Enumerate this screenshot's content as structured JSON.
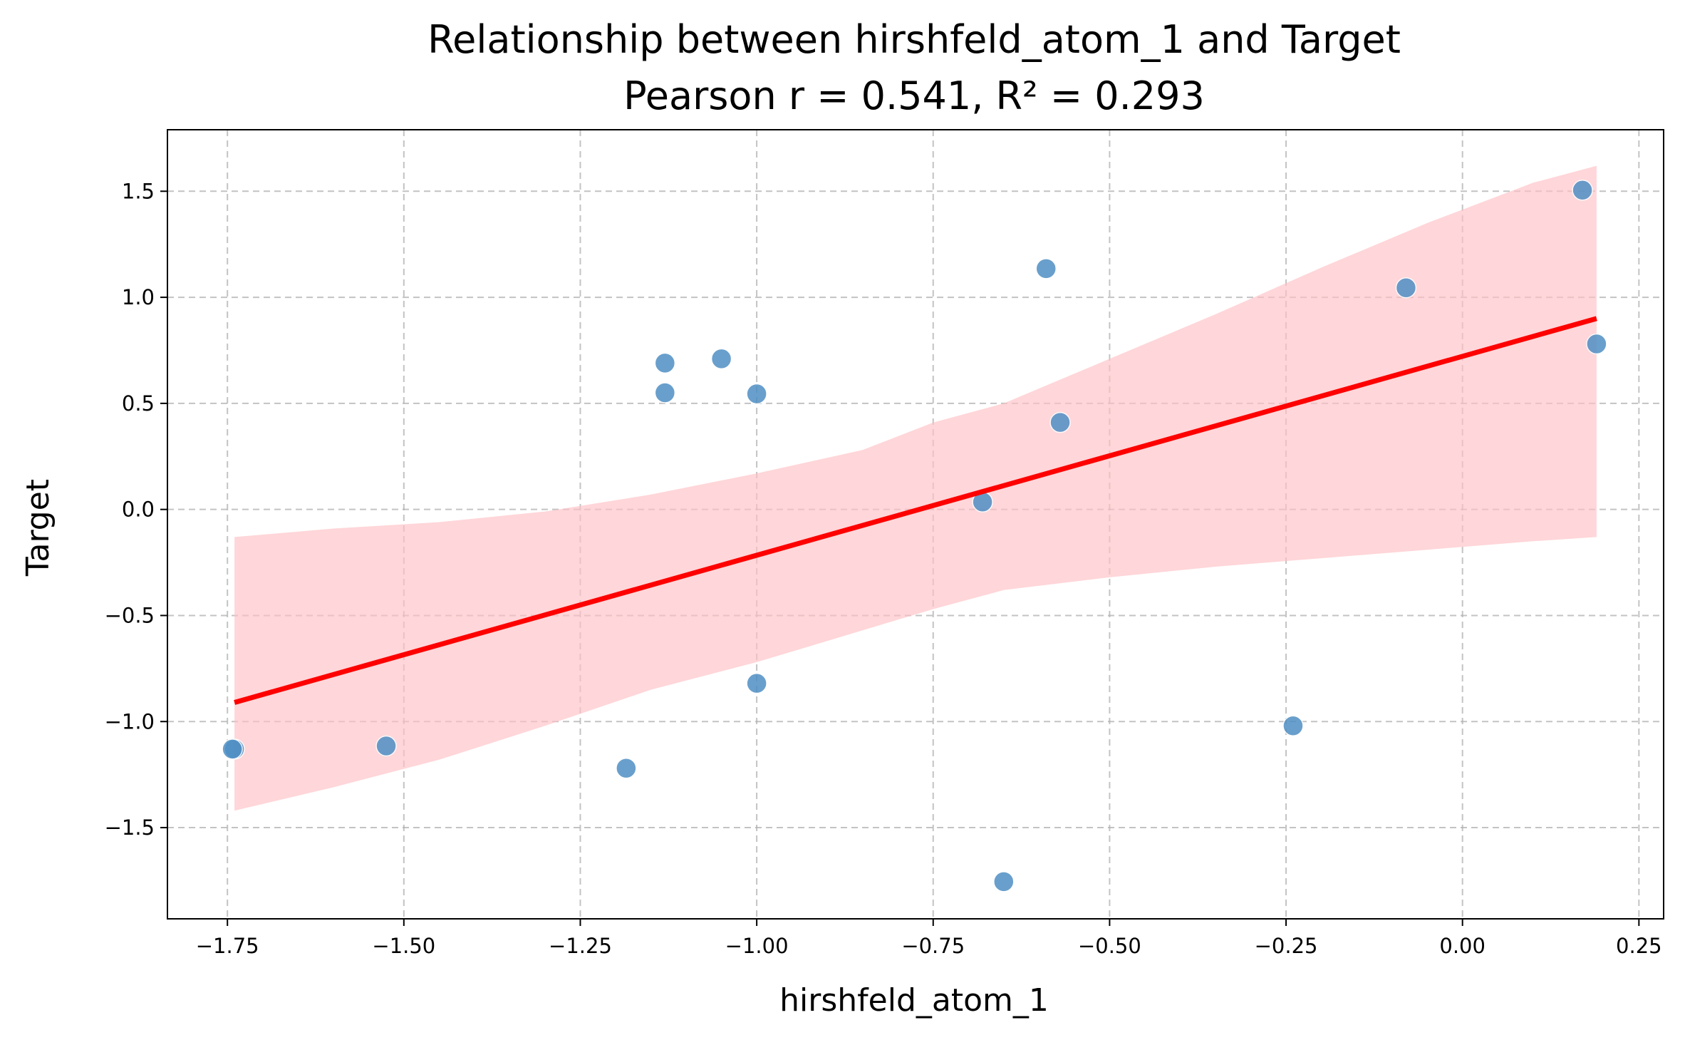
{
  "chart_data": {
    "type": "scatter",
    "title": "Relationship between hirshfeld_atom_1 and Target",
    "subtitle": "Pearson r = 0.541, R² = 0.293",
    "xlabel": "hirshfeld_atom_1",
    "ylabel": "Target",
    "xlim": [
      -1.835,
      0.285
    ],
    "ylim": [
      -1.93,
      1.79
    ],
    "xticks": [
      -1.75,
      -1.5,
      -1.25,
      -1.0,
      -0.75,
      -0.5,
      -0.25,
      0.0,
      0.25
    ],
    "xtick_labels": [
      "−1.75",
      "−1.50",
      "−1.25",
      "−1.00",
      "−0.75",
      "−0.50",
      "−0.25",
      "0.00",
      "0.25"
    ],
    "yticks": [
      -1.5,
      -1.0,
      -0.5,
      0.0,
      0.5,
      1.0,
      1.5
    ],
    "ytick_labels": [
      "−1.5",
      "−1.0",
      "−0.5",
      "0.0",
      "0.5",
      "1.0",
      "1.5"
    ],
    "grid": true,
    "points": [
      {
        "x": -1.74,
        "y": -1.13
      },
      {
        "x": -1.743,
        "y": -1.13
      },
      {
        "x": -1.525,
        "y": -1.115
      },
      {
        "x": -1.185,
        "y": -1.22
      },
      {
        "x": -1.13,
        "y": 0.69
      },
      {
        "x": -1.13,
        "y": 0.55
      },
      {
        "x": -1.05,
        "y": 0.71
      },
      {
        "x": -1.0,
        "y": 0.545
      },
      {
        "x": -1.0,
        "y": -0.82
      },
      {
        "x": -0.68,
        "y": 0.035
      },
      {
        "x": -0.65,
        "y": -1.755
      },
      {
        "x": -0.59,
        "y": 1.135
      },
      {
        "x": -0.57,
        "y": 0.41
      },
      {
        "x": -0.24,
        "y": -1.02
      },
      {
        "x": -0.08,
        "y": 1.045
      },
      {
        "x": 0.17,
        "y": 1.505
      },
      {
        "x": 0.19,
        "y": 0.78
      }
    ],
    "regression": {
      "x": [
        -1.74,
        0.19
      ],
      "y": [
        -0.91,
        0.9
      ]
    },
    "confidence_band": {
      "x": [
        -1.74,
        -1.6,
        -1.45,
        -1.3,
        -1.15,
        -1.0,
        -0.85,
        -0.75,
        -0.65,
        -0.5,
        -0.35,
        -0.2,
        -0.05,
        0.1,
        0.19
      ],
      "upper": [
        -0.13,
        -0.09,
        -0.06,
        -0.01,
        0.07,
        0.17,
        0.28,
        0.41,
        0.5,
        0.71,
        0.92,
        1.14,
        1.35,
        1.54,
        1.62
      ],
      "lower": [
        -1.42,
        -1.31,
        -1.18,
        -1.02,
        -0.85,
        -0.72,
        -0.57,
        -0.47,
        -0.38,
        -0.32,
        -0.27,
        -0.23,
        -0.19,
        -0.15,
        -0.13
      ]
    },
    "colors": {
      "points": "#4f8fc4",
      "regression": "#ff0000",
      "band": "#ffc0c4",
      "grid": "#b0b0b0"
    }
  }
}
